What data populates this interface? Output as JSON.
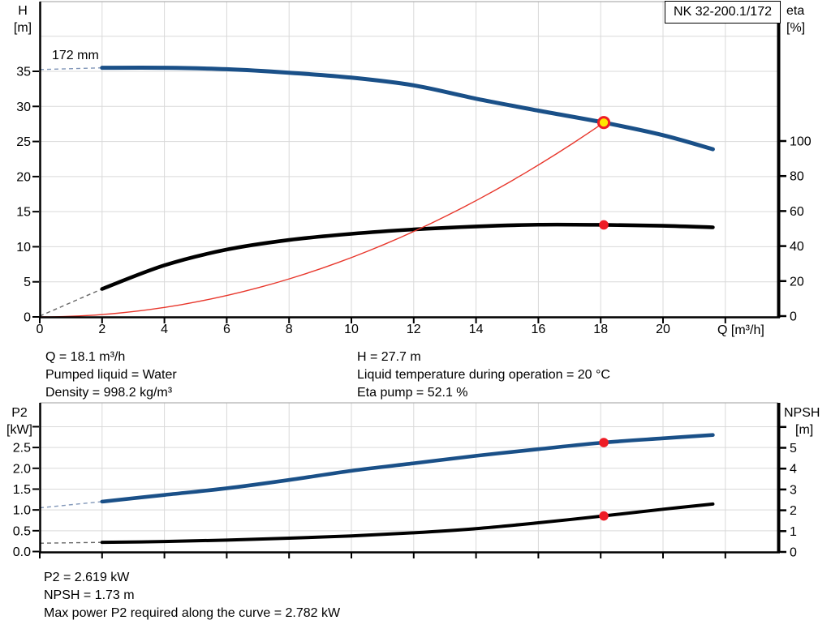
{
  "title_box": "NK 32-200.1/172",
  "impeller_label": "172 mm",
  "axis_titles": {
    "h_1": "H",
    "h_2": "[m]",
    "eta_1": "eta",
    "eta_2": "[%]",
    "q": "Q [m³/h]",
    "p2_1": "P2",
    "p2_2": "[kW]",
    "npsh_1": "NPSH",
    "npsh_2": "[m]"
  },
  "info_top": {
    "left": [
      "Q = 18.1 m³/h",
      "Pumped liquid = Water",
      "Density = 998.2 kg/m³"
    ],
    "right": [
      "H = 27.7 m",
      "Liquid temperature during operation = 20 °C",
      "Eta pump = 52.1 %"
    ]
  },
  "info_bottom": [
    "P2 = 2.619 kW",
    "NPSH = 1.73 m",
    "Max power P2 required along the curve = 2.782 kW"
  ],
  "colors": {
    "curve_blue": "#1a5088",
    "curve_black": "#000000",
    "system_red": "#e8372c",
    "marker_red": "#ee1c25",
    "marker_yellow": "#ffe600",
    "grid": "#d9d9d9",
    "border_gray": "#b0b0b0",
    "axis": "#000000",
    "dash_blue": "#8096b8",
    "dash_gray": "#666666"
  },
  "chart_data": [
    {
      "type": "line",
      "title": "Pump curve NK 32-200.1/172, impeller 172 mm",
      "xlabel": "Q [m³/h]",
      "ylabel_left": "H [m]",
      "ylabel_right": "eta [%]",
      "xlim": [
        0,
        23.7
      ],
      "ylim_left": [
        0,
        45
      ],
      "ylim_right": [
        0,
        104
      ],
      "grid": true,
      "x_ticks_labeled": [
        0,
        2,
        4,
        6,
        8,
        10,
        12,
        14,
        16,
        18,
        20
      ],
      "x_ticks_unlabeled": [
        22
      ],
      "left_ticks_labeled": [
        0,
        5,
        10,
        15,
        20,
        25,
        30,
        35
      ],
      "right_ticks_labeled": [
        0,
        20,
        40,
        60,
        80,
        100
      ],
      "series": [
        {
          "name": "head-curve",
          "axis": "left",
          "color_key": "curve_blue",
          "width": 5,
          "dashed_below_first": true,
          "q": [
            0,
            2,
            4,
            6,
            8,
            10,
            12,
            14,
            16,
            18.1,
            20,
            21.6
          ],
          "values": [
            35.25,
            35.5,
            35.5,
            35.3,
            34.8,
            34.1,
            33.0,
            31.1,
            29.4,
            27.7,
            25.9,
            23.9
          ]
        },
        {
          "name": "efficiency-curve",
          "axis": "right",
          "color_key": "curve_black",
          "width": 4.6,
          "dashed_below_first": true,
          "q": [
            0,
            2,
            4,
            6,
            8,
            10,
            12,
            14,
            16,
            18.1,
            20,
            21.6
          ],
          "values": [
            0,
            15.5,
            29,
            38,
            43.5,
            47,
            49.5,
            51.2,
            52.2,
            52.1,
            51.6,
            50.7
          ]
        },
        {
          "name": "system-curve",
          "axis": "left",
          "color_key": "system_red",
          "width": 1.4,
          "quadratic_through": {
            "q": 18.1,
            "h": 27.7
          }
        }
      ],
      "markers": [
        {
          "name": "duty-point-marker",
          "q": 18.1,
          "value": 27.7,
          "axis": "left",
          "style": "yellow-red"
        },
        {
          "name": "efficiency-point-marker",
          "q": 18.1,
          "value": 52.1,
          "axis": "right",
          "style": "red"
        }
      ]
    },
    {
      "type": "line",
      "title": "Power P2 and NPSH curves",
      "xlabel": "Q [m³/h]",
      "ylabel_left": "P2 [kW]",
      "ylabel_right": "NPSH [m]",
      "xlim": [
        0,
        23.7
      ],
      "ylim_left": [
        0,
        3.5
      ],
      "ylim_right": [
        0,
        7
      ],
      "grid": true,
      "x_ticks_unlabeled": [
        0,
        2,
        4,
        6,
        8,
        10,
        12,
        14,
        16,
        18,
        20,
        22
      ],
      "left_ticks_labeled": [
        "0.0",
        "0.5",
        "1.0",
        "1.5",
        "2.0",
        "2.5"
      ],
      "left_ticks_unlabeled": [
        3.0
      ],
      "right_ticks_labeled": [
        0,
        1,
        2,
        3,
        4,
        5
      ],
      "right_ticks_unlabeled": [
        6
      ],
      "series": [
        {
          "name": "p2-curve",
          "axis": "left",
          "color_key": "curve_blue",
          "width": 4.6,
          "dashed_below_first": true,
          "q": [
            0,
            2,
            4,
            6,
            8,
            10,
            12,
            14,
            16,
            18.1,
            20,
            21.6
          ],
          "values": [
            1.05,
            1.2,
            1.36,
            1.52,
            1.72,
            1.94,
            2.12,
            2.3,
            2.46,
            2.619,
            2.72,
            2.8
          ]
        },
        {
          "name": "npsh-curve",
          "axis": "right",
          "color_key": "curve_black",
          "width": 4,
          "dashed_below_first": true,
          "q": [
            0,
            2,
            4,
            6,
            8,
            10,
            12,
            14,
            16,
            18.1,
            20,
            21.6
          ],
          "values": [
            0.42,
            0.46,
            0.5,
            0.57,
            0.66,
            0.77,
            0.92,
            1.12,
            1.4,
            1.73,
            2.05,
            2.3
          ]
        }
      ],
      "markers": [
        {
          "name": "p2-point-marker",
          "q": 18.1,
          "value": 2.619,
          "axis": "left",
          "style": "red"
        },
        {
          "name": "npsh-point-marker",
          "q": 18.1,
          "value": 1.73,
          "axis": "right",
          "style": "red"
        }
      ]
    }
  ]
}
